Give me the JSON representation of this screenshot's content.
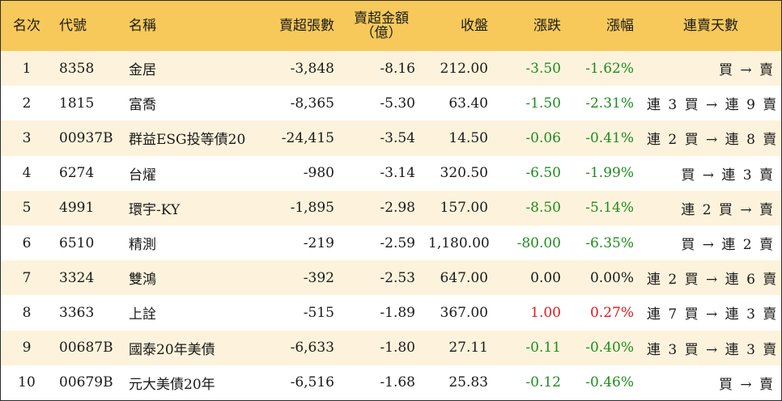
{
  "headers": {
    "rank": "名次",
    "code": "代號",
    "name": "名稱",
    "net_sell_lots": "賣超張數",
    "net_sell_amount_line1": "賣超金額",
    "net_sell_amount_line2": "（億）",
    "close": "收盤",
    "change": "漲跌",
    "change_pct": "漲幅",
    "streak": "連賣天數"
  },
  "colors": {
    "header_bg": "#f6c95a",
    "row_alt_bg": "#fdf3dc",
    "down": "#1f8c1f",
    "up": "#e01818"
  },
  "rows": [
    {
      "rank": "1",
      "code": "8358",
      "name": "金居",
      "lots": "-3,848",
      "amount": "-8.16",
      "close": "212.00",
      "change": "-3.50",
      "pct": "-1.62%",
      "dir": "down",
      "streak": "買 → 賣"
    },
    {
      "rank": "2",
      "code": "1815",
      "name": "富喬",
      "lots": "-8,365",
      "amount": "-5.30",
      "close": "63.40",
      "change": "-1.50",
      "pct": "-2.31%",
      "dir": "down",
      "streak": "連 3 買 → 連 9 賣"
    },
    {
      "rank": "3",
      "code": "00937B",
      "name": "群益ESG投等債20",
      "lots": "-24,415",
      "amount": "-3.54",
      "close": "14.50",
      "change": "-0.06",
      "pct": "-0.41%",
      "dir": "down",
      "streak": "連 2 買 → 連 8 賣"
    },
    {
      "rank": "4",
      "code": "6274",
      "name": "台燿",
      "lots": "-980",
      "amount": "-3.14",
      "close": "320.50",
      "change": "-6.50",
      "pct": "-1.99%",
      "dir": "down",
      "streak": "買 → 連 3 賣"
    },
    {
      "rank": "5",
      "code": "4991",
      "name": "環宇-KY",
      "lots": "-1,895",
      "amount": "-2.98",
      "close": "157.00",
      "change": "-8.50",
      "pct": "-5.14%",
      "dir": "down",
      "streak": "連 2 買 → 賣"
    },
    {
      "rank": "6",
      "code": "6510",
      "name": "精測",
      "lots": "-219",
      "amount": "-2.59",
      "close": "1,180.00",
      "change": "-80.00",
      "pct": "-6.35%",
      "dir": "down",
      "streak": "買 → 連 2 賣"
    },
    {
      "rank": "7",
      "code": "3324",
      "name": "雙鴻",
      "lots": "-392",
      "amount": "-2.53",
      "close": "647.00",
      "change": "0.00",
      "pct": "0.00%",
      "dir": "flat",
      "streak": "連 2 買 → 連 6 賣"
    },
    {
      "rank": "8",
      "code": "3363",
      "name": "上詮",
      "lots": "-515",
      "amount": "-1.89",
      "close": "367.00",
      "change": "1.00",
      "pct": "0.27%",
      "dir": "up",
      "streak": "連 7 買 → 連 3 賣"
    },
    {
      "rank": "9",
      "code": "00687B",
      "name": "國泰20年美債",
      "lots": "-6,633",
      "amount": "-1.80",
      "close": "27.11",
      "change": "-0.11",
      "pct": "-0.40%",
      "dir": "down",
      "streak": "連 3 買 → 連 3 賣"
    },
    {
      "rank": "10",
      "code": "00679B",
      "name": "元大美債20年",
      "lots": "-6,516",
      "amount": "-1.68",
      "close": "25.83",
      "change": "-0.12",
      "pct": "-0.46%",
      "dir": "down",
      "streak": "買 → 賣"
    }
  ]
}
